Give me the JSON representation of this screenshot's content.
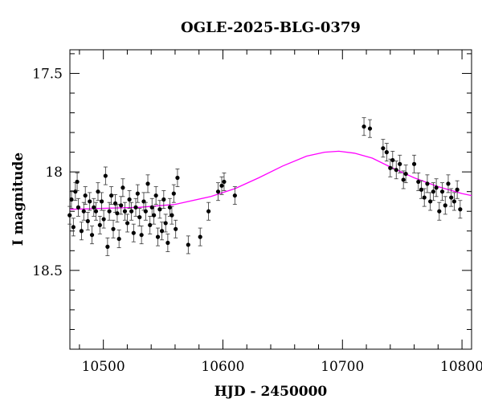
{
  "chart_data": {
    "type": "scatter",
    "title": "OGLE-2025-BLG-0379",
    "xlabel": "HJD - 2450000",
    "ylabel": "I magnitude",
    "xlim": [
      10472,
      10808
    ],
    "ylim": [
      18.9,
      17.38
    ],
    "y_inverted": true,
    "x_ticks": [
      10500,
      10600,
      10700,
      10800
    ],
    "y_ticks": [
      17.5,
      18,
      18.5
    ],
    "x_tick_labels": [
      "10500",
      "10600",
      "10700",
      "10800"
    ],
    "y_tick_labels": [
      "17.5",
      "18",
      "18.5"
    ],
    "colors": {
      "data": "#000000",
      "model": "#ff00ff"
    },
    "model_curve": {
      "x": [
        10472,
        10500,
        10530,
        10560,
        10590,
        10610,
        10630,
        10650,
        10670,
        10685,
        10697,
        10710,
        10725,
        10740,
        10760,
        10780,
        10800,
        10808
      ],
      "y": [
        18.19,
        18.185,
        18.18,
        18.165,
        18.125,
        18.085,
        18.03,
        17.97,
        17.92,
        17.9,
        17.895,
        17.905,
        17.93,
        17.975,
        18.03,
        18.075,
        18.11,
        18.12
      ]
    },
    "series": [
      {
        "x": [
          10471.8,
          10473.3,
          10474.9,
          10476.6,
          10478.1,
          10479.0,
          10481.7,
          10483.6,
          10484.9,
          10487.0,
          10488.6,
          10490.5,
          10492.0,
          10493.8,
          10495.5,
          10497.1,
          10498.6,
          10500.3,
          10501.8,
          10503.5,
          10505.0,
          10506.7,
          10508.3,
          10510.0,
          10511.6,
          10513.1,
          10514.8,
          10516.3,
          10518.0,
          10520.1,
          10521.8,
          10523.5,
          10525.3,
          10527.1,
          10528.7,
          10530.3,
          10531.9,
          10533.8,
          10535.4,
          10537.2,
          10539.0,
          10540.7,
          10542.3,
          10544.0,
          10545.6,
          10547.2,
          10549.0,
          10550.5,
          10552.1,
          10553.9,
          10555.6,
          10557.3,
          10558.9,
          10560.5,
          10562.0,
          10571.0,
          10581.0,
          10588.0,
          10596.0,
          10599.0,
          10601.0,
          10610.0,
          10718.0,
          10723.0,
          10734.0,
          10737.0,
          10740.0,
          10742.0,
          10745.0,
          10748.0,
          10751.0,
          10753.0,
          10760.0,
          10763.5,
          10766.0,
          10768.5,
          10771.0,
          10773.5,
          10776.0,
          10778.5,
          10781.0,
          10783.5,
          10786.0,
          10788.5,
          10791.0,
          10793.5,
          10796.0,
          10798.5
        ],
        "y": [
          18.22,
          18.14,
          18.28,
          18.1,
          18.05,
          18.18,
          18.3,
          18.2,
          18.12,
          18.25,
          18.15,
          18.32,
          18.18,
          18.2,
          18.1,
          18.27,
          18.15,
          18.24,
          18.02,
          18.38,
          18.2,
          18.12,
          18.29,
          18.16,
          18.21,
          18.34,
          18.17,
          18.08,
          18.2,
          18.26,
          18.14,
          18.2,
          18.31,
          18.18,
          18.11,
          18.23,
          18.32,
          18.15,
          18.2,
          18.06,
          18.27,
          18.18,
          18.22,
          18.12,
          18.33,
          18.19,
          18.3,
          18.14,
          18.26,
          18.36,
          18.18,
          18.22,
          18.11,
          18.29,
          18.03,
          18.37,
          18.33,
          18.2,
          18.1,
          18.07,
          18.05,
          18.12,
          17.77,
          17.78,
          17.88,
          17.9,
          17.98,
          17.94,
          17.99,
          17.96,
          18.04,
          18.01,
          17.96,
          18.05,
          18.09,
          18.13,
          18.06,
          18.15,
          18.1,
          18.08,
          18.2,
          18.1,
          18.17,
          18.06,
          18.13,
          18.15,
          18.09,
          18.19
        ]
      }
    ]
  }
}
